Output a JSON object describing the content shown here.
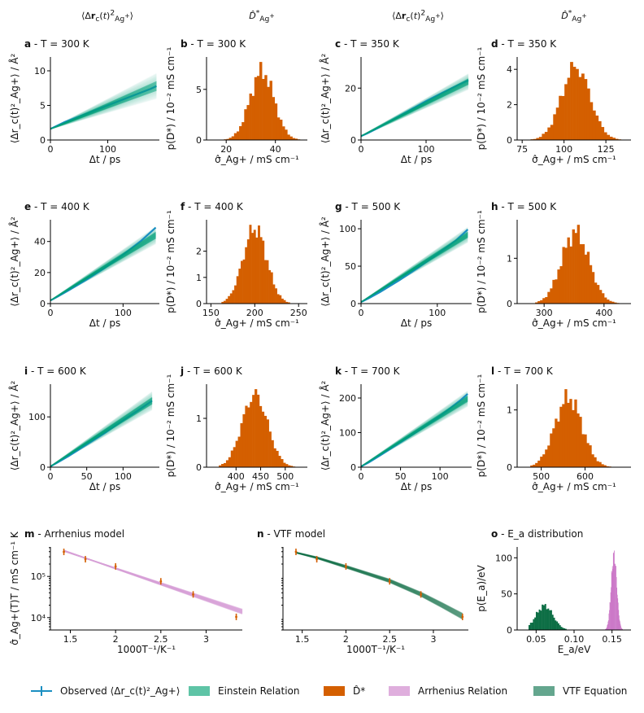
{
  "colors": {
    "observed": "#1a8fc2",
    "einstein": "#00a07a",
    "einstein_light": "#5ec4a6",
    "dhat": "#d45f00",
    "arrhenius": "#d6a0d8",
    "vtf": "#5aa58a",
    "ea_green": "#0d6e45",
    "ea_pink": "#cc79c8",
    "axis": "#000000"
  },
  "column_headers": [
    "⟨Δr_c(t)²_Ag+⟩",
    "D̂*_Ag+",
    "⟨Δr_c(t)²_Ag+⟩",
    "D̂*_Ag+"
  ],
  "legend": [
    {
      "label": "Observed ⟨Δr_c(t)²_Ag+⟩",
      "kind": "line",
      "icon": "errorbar-cross-icon"
    },
    {
      "label": "Einstein Relation",
      "kind": "swatch",
      "color": "#5ec4a6"
    },
    {
      "label": "D̂*",
      "kind": "swatch",
      "color": "#d45f00"
    },
    {
      "label": "Arrhenius Relation",
      "kind": "swatch",
      "color": "#dfaedd"
    },
    {
      "label": "VTF Equation",
      "kind": "swatch",
      "color": "#64a68e"
    }
  ],
  "chart_data": [
    {
      "id": "a",
      "type": "line",
      "title": "a - T = 300 K",
      "xlabel": "Δt / ps",
      "ylabel": "⟨Δr_c(t)²_Ag+⟩ / Å²",
      "xlim": [
        0,
        190
      ],
      "ylim": [
        0,
        12
      ],
      "xticks": [
        0,
        100
      ],
      "yticks": [
        0,
        5,
        10
      ],
      "observed": {
        "x": [
          0,
          10,
          25,
          50,
          75,
          100,
          125,
          150,
          175,
          185
        ],
        "y": [
          1.6,
          2.0,
          2.6,
          3.4,
          4.2,
          5.0,
          5.8,
          6.6,
          7.4,
          7.8
        ]
      },
      "einstein": {
        "intercept": 1.6,
        "end_x": 185,
        "end_mean": 7.8,
        "end_spread": 1.8
      }
    },
    {
      "id": "b",
      "type": "bar",
      "title": "b - T = 300 K",
      "xlabel": "σ̂_Ag+ / mS cm⁻¹",
      "ylabel": "p(D*) / 10⁻² mS cm⁻¹",
      "xlim": [
        12,
        53
      ],
      "ylim": [
        0,
        8.2
      ],
      "xticks": [
        20,
        40
      ],
      "yticks": [
        0,
        5
      ],
      "mean": 34.5,
      "sd": 4.9,
      "range": [
        17,
        50
      ],
      "bins": 32
    },
    {
      "id": "c",
      "type": "line",
      "title": "c - T = 350 K",
      "xlabel": "Δt / ps",
      "ylabel": "⟨Δr_c(t)²_Ag+⟩ / Å²",
      "xlim": [
        0,
        170
      ],
      "ylim": [
        0,
        32
      ],
      "xticks": [
        0,
        100
      ],
      "yticks": [
        0,
        20
      ],
      "observed": {
        "x": [
          0,
          10,
          25,
          50,
          75,
          100,
          125,
          150,
          165
        ],
        "y": [
          1.5,
          2.6,
          4.5,
          8.0,
          11.5,
          15.0,
          18.2,
          21.3,
          23.0
        ]
      },
      "einstein": {
        "intercept": 1.5,
        "end_x": 165,
        "end_mean": 22.5,
        "end_spread": 3.0
      }
    },
    {
      "id": "d",
      "type": "bar",
      "title": "d - T = 350 K",
      "xlabel": "σ̂_Ag+ / mS cm⁻¹",
      "ylabel": "p(D*) / 10⁻² mS cm⁻¹",
      "xlim": [
        72,
        140
      ],
      "ylim": [
        0,
        4.7
      ],
      "xticks": [
        75,
        100,
        125
      ],
      "yticks": [
        0,
        2,
        4
      ],
      "mean": 107,
      "sd": 8.5,
      "range": [
        80,
        134
      ],
      "bins": 32
    },
    {
      "id": "e",
      "type": "line",
      "title": "e - T = 400 K",
      "xlabel": "Δt / ps",
      "ylabel": "⟨Δr_c(t)²_Ag+⟩ / Å²",
      "xlim": [
        0,
        150
      ],
      "ylim": [
        0,
        54
      ],
      "xticks": [
        0,
        100
      ],
      "yticks": [
        0,
        20,
        40
      ],
      "observed": {
        "x": [
          0,
          10,
          25,
          50,
          75,
          100,
          125,
          145
        ],
        "y": [
          2.0,
          4.5,
          8.5,
          15.5,
          23.0,
          31.5,
          40.5,
          49.0
        ]
      },
      "einstein": {
        "intercept": 2.0,
        "end_x": 145,
        "end_mean": 44.0,
        "end_spread": 5.5
      }
    },
    {
      "id": "f",
      "type": "bar",
      "title": "f - T = 400 K",
      "xlabel": "σ̂_Ag+ / mS cm⁻¹",
      "ylabel": "p(D*) / 10⁻² mS cm⁻¹",
      "xlim": [
        145,
        260
      ],
      "ylim": [
        0,
        3.2
      ],
      "xticks": [
        150,
        200,
        250
      ],
      "yticks": [
        0,
        1,
        2
      ],
      "mean": 200,
      "sd": 13.5,
      "range": [
        162,
        240
      ],
      "bins": 32
    },
    {
      "id": "g",
      "type": "line",
      "title": "g - T = 500 K",
      "xlabel": "Δt / ps",
      "ylabel": "⟨Δr_c(t)²_Ag+⟩ / Å²",
      "xlim": [
        0,
        145
      ],
      "ylim": [
        0,
        112
      ],
      "xticks": [
        0,
        100
      ],
      "yticks": [
        0,
        50,
        100
      ],
      "observed": {
        "x": [
          0,
          10,
          25,
          50,
          75,
          100,
          125,
          140
        ],
        "y": [
          2.0,
          7.0,
          15.5,
          31.0,
          48.0,
          66.0,
          85.0,
          99.0
        ]
      },
      "einstein": {
        "intercept": 2.0,
        "end_x": 140,
        "end_mean": 92.0,
        "end_spread": 10.0
      }
    },
    {
      "id": "h",
      "type": "bar",
      "title": "h - T = 500 K",
      "xlabel": "σ̂_Ag+ / mS cm⁻¹",
      "ylabel": "p(D*) / 10⁻² mS cm⁻¹",
      "xlim": [
        255,
        445
      ],
      "ylim": [
        0,
        1.85
      ],
      "xticks": [
        300,
        400
      ],
      "yticks": [
        0,
        1
      ],
      "mean": 352,
      "sd": 23,
      "range": [
        285,
        425
      ],
      "bins": 34
    },
    {
      "id": "i",
      "type": "line",
      "title": "i - T = 600 K",
      "xlabel": "Δt / ps",
      "ylabel": "⟨Δr_c(t)²_Ag+⟩ / Å²",
      "xlim": [
        0,
        150
      ],
      "ylim": [
        0,
        165
      ],
      "xticks": [
        0,
        50,
        100
      ],
      "yticks": [
        0,
        100
      ],
      "observed": {
        "x": [
          0,
          10,
          25,
          50,
          75,
          100,
          125,
          140
        ],
        "y": [
          1.5,
          9.5,
          22.0,
          45.0,
          68.0,
          93.0,
          117.0,
          132.0
        ]
      },
      "einstein": {
        "intercept": 1.5,
        "end_x": 140,
        "end_mean": 132.0,
        "end_spread": 18.0
      }
    },
    {
      "id": "j",
      "type": "bar",
      "title": "j - T = 600 K",
      "xlabel": "σ̂_Ag+ / mS cm⁻¹",
      "ylabel": "p(D*) / 10⁻² mS cm⁻¹",
      "xlim": [
        340,
        545
      ],
      "ylim": [
        0,
        1.7
      ],
      "xticks": [
        400,
        450,
        500
      ],
      "yticks": [
        0,
        1
      ],
      "mean": 438,
      "sd": 26,
      "range": [
        365,
        520
      ],
      "bins": 32
    },
    {
      "id": "k",
      "type": "line",
      "title": "k - T = 700 K",
      "xlabel": "Δt / ps",
      "ylabel": "⟨Δr_c(t)²_Ag+⟩ / Å²",
      "xlim": [
        0,
        140
      ],
      "ylim": [
        0,
        240
      ],
      "xticks": [
        0,
        50,
        100
      ],
      "yticks": [
        0,
        100,
        200
      ],
      "observed": {
        "x": [
          0,
          10,
          25,
          50,
          75,
          100,
          125,
          135
        ],
        "y": [
          2.0,
          14.0,
          35.0,
          72.0,
          109.0,
          148.0,
          192.0,
          212.0
        ]
      },
      "einstein": {
        "intercept": 2.0,
        "end_x": 135,
        "end_mean": 198.0,
        "end_spread": 22.0
      }
    },
    {
      "id": "l",
      "type": "bar",
      "title": "l - T = 700 K",
      "xlabel": "σ̂_Ag+ / mS cm⁻¹",
      "ylabel": "p(D*) / 10⁻² mS cm⁻¹",
      "xlim": [
        445,
        705
      ],
      "ylim": [
        0,
        1.45
      ],
      "xticks": [
        500,
        600
      ],
      "yticks": [
        0,
        1
      ],
      "mean": 562,
      "sd": 31,
      "range": [
        475,
        665
      ],
      "bins": 34
    },
    {
      "id": "m",
      "type": "scatter",
      "title": "m - Arrhenius model",
      "xlabel": "1000T⁻¹/K⁻¹",
      "ylabel": "σ̂_Ag+(T)T / mS cm⁻¹ K",
      "xlim": [
        1.28,
        3.4
      ],
      "ylog": true,
      "ylim": [
        5000,
        520000
      ],
      "xticks": [
        1.5,
        2.0,
        2.5,
        3.0
      ],
      "yticks": [
        10000,
        100000
      ],
      "ytick_labels": [
        "10⁴",
        "10⁵"
      ],
      "x": [
        1.4286,
        1.6667,
        2.0,
        2.5,
        2.857,
        3.333
      ],
      "y": [
        395000,
        262000,
        175000,
        76000,
        36500,
        10400
      ],
      "fit": {
        "x": [
          1.4286,
          3.4
        ],
        "y": [
          420000,
          14000
        ]
      }
    },
    {
      "id": "n",
      "type": "scatter",
      "title": "n - VTF model",
      "xlabel": "1000T⁻¹/K⁻¹",
      "ylabel": "",
      "xlim": [
        1.28,
        3.4
      ],
      "ylog": true,
      "ylim": [
        5000,
        520000
      ],
      "xticks": [
        1.5,
        2.0,
        2.5,
        3.0
      ],
      "yticks": [],
      "x": [
        1.4286,
        1.6667,
        2.0,
        2.5,
        2.857,
        3.333
      ],
      "y": [
        395000,
        262000,
        175000,
        76000,
        36500,
        10400
      ],
      "fit_curve": {
        "x": [
          1.4286,
          1.6667,
          2.0,
          2.5,
          2.857,
          3.1,
          3.333
        ],
        "y": [
          380000,
          285000,
          172000,
          78000,
          37000,
          20000,
          10800
        ]
      }
    },
    {
      "id": "o",
      "type": "bar",
      "title": "o - E_a distribution",
      "xlabel": "E_a/eV",
      "ylabel": "p(E_a)/eV",
      "xlim": [
        0.025,
        0.175
      ],
      "ylim": [
        0,
        115
      ],
      "xticks": [
        0.05,
        0.1,
        0.15
      ],
      "yticks": [
        0,
        50,
        100
      ],
      "distributions": [
        {
          "name": "VTF",
          "mean": 0.061,
          "sd": 0.0112,
          "range": [
            0.04,
            0.09
          ],
          "bins": 26,
          "peak": 36
        },
        {
          "name": "Arrhenius",
          "mean": 0.1525,
          "sd": 0.0037,
          "range": [
            0.141,
            0.164
          ],
          "bins": 40,
          "peak": 110
        }
      ]
    }
  ]
}
